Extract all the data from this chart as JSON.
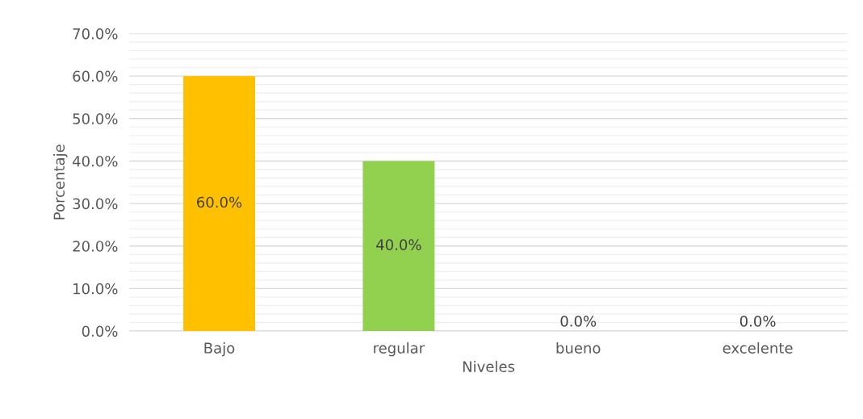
{
  "chart_data": {
    "type": "bar",
    "xlabel": "Niveles",
    "ylabel": "Porcentaje",
    "categories": [
      "Bajo",
      "regular",
      "bueno",
      "excelente"
    ],
    "values": [
      60,
      40,
      0,
      0
    ],
    "colors": [
      "#ffc000",
      "#92d050",
      "#ffc000",
      "#92d050"
    ],
    "value_labels": [
      "60.0%",
      "40.0%",
      "0.0%",
      "0.0%"
    ],
    "ylim": [
      0,
      70
    ],
    "yticks": [
      {
        "value": 0,
        "label": "0.0%"
      },
      {
        "value": 10,
        "label": "10.0%"
      },
      {
        "value": 20,
        "label": "20.0%"
      },
      {
        "value": 30,
        "label": "30.0%"
      },
      {
        "value": 40,
        "label": "40.0%"
      },
      {
        "value": 50,
        "label": "50.0%"
      },
      {
        "value": 60,
        "label": "60.0%"
      },
      {
        "value": 70,
        "label": "70.0%"
      }
    ],
    "grid": "y",
    "legend": false
  }
}
